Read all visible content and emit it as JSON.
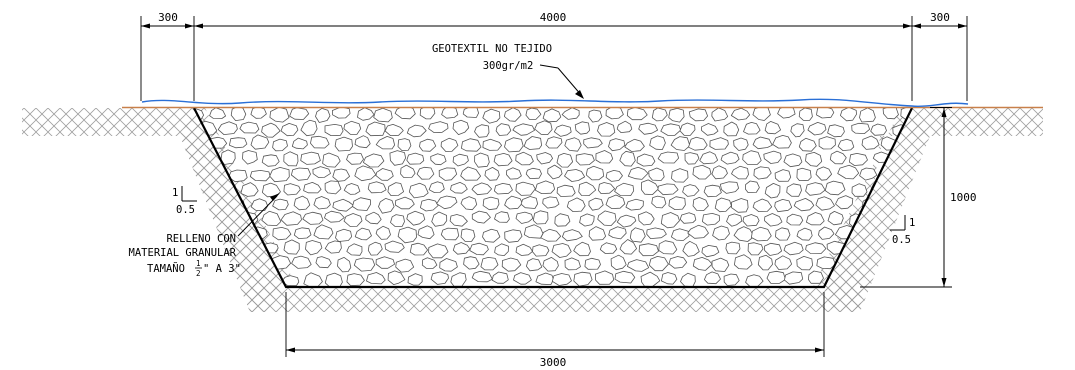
{
  "dimensions": {
    "left_offset": "300",
    "top_width": "4000",
    "right_offset": "300",
    "depth": "1000",
    "bottom_width": "3000"
  },
  "labels": {
    "geotextile_line1": "GEOTEXTIL NO TEJIDO",
    "geotextile_line2": "300gr/m2",
    "fill_line1": "RELLENO CON",
    "fill_line2": "MATERIAL GRANULAR",
    "fill_line3_prefix": "TAMAÑO",
    "fill_frac_num": "1",
    "fill_frac_den": "2",
    "fill_line3_suffix": "\" A 3\""
  },
  "slopes": {
    "left": {
      "rise": "1",
      "run": "0.5"
    },
    "right": {
      "rise": "1",
      "run": "0.5"
    }
  },
  "colors": {
    "ground_line": "#c8804a",
    "geotextile": "#2a6fd6",
    "hatch": "#9a9a9a",
    "stone": "#555555"
  }
}
